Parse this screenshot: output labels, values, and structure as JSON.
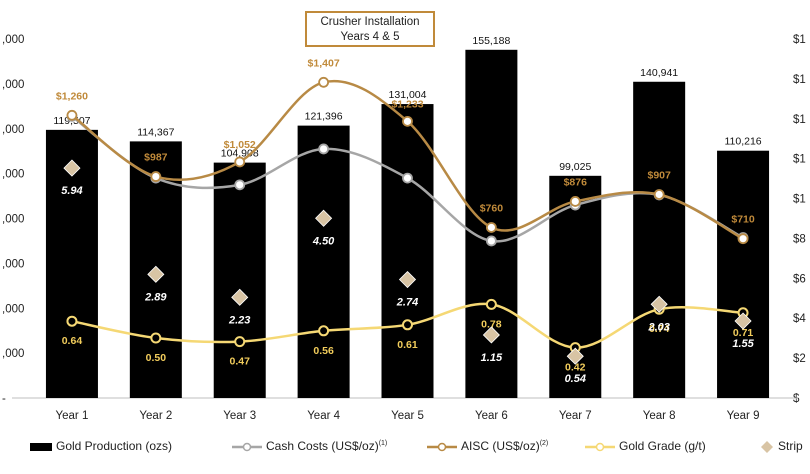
{
  "chart_data": {
    "type": "bar",
    "categories": [
      "Year 1",
      "Year 2",
      "Year 3",
      "Year 4",
      "Year 5",
      "Year 6",
      "Year 7",
      "Year 8",
      "Year 9"
    ],
    "series": [
      {
        "name": "Gold Production (ozs)",
        "type": "bar",
        "axis": "left",
        "color": "#000000",
        "values": [
          119507,
          114367,
          104908,
          121396,
          131004,
          155188,
          99025,
          140941,
          110216
        ],
        "labels": [
          "119,507",
          "114,367",
          "104,908",
          "121,396",
          "131,004",
          "155,188",
          "99,025",
          "140,941",
          "110,216"
        ]
      },
      {
        "name": "Cash Costs (US$/oz)",
        "name_sup": "(1)",
        "type": "line",
        "axis": "right",
        "color": "#A6A6A6",
        "values": [
          1255,
          980,
          950,
          1110,
          980,
          700,
          860,
          905,
          715
        ]
      },
      {
        "name": "AISC (US$/oz)",
        "name_sup": "(2)",
        "type": "line",
        "axis": "right",
        "color": "#B88A45",
        "values": [
          1260,
          987,
          1052,
          1407,
          1233,
          760,
          876,
          907,
          710
        ],
        "labels": [
          "$1,260",
          "$987",
          "$1,052",
          "$1,407",
          "$1,233",
          "$760",
          "$876",
          "$907",
          "$710"
        ]
      },
      {
        "name": "Gold Grade (g/t)",
        "type": "line",
        "axis": "right",
        "color": "#F5D874",
        "values": [
          0.64,
          0.5,
          0.47,
          0.56,
          0.61,
          0.78,
          0.42,
          0.74,
          0.71
        ],
        "labels": [
          "0.64",
          "0.50",
          "0.47",
          "0.56",
          "0.61",
          "0.78",
          "0.42",
          "0.74",
          "0.71"
        ]
      },
      {
        "name": "Strip",
        "type": "scatter",
        "axis": "right",
        "color": "#D8C4A4",
        "values": [
          5.94,
          2.89,
          2.23,
          4.5,
          2.74,
          1.15,
          0.54,
          2.03,
          1.55
        ],
        "labels": [
          "5.94",
          "2.89",
          "2.23",
          "4.50",
          "2.74",
          "1.15",
          "0.54",
          "2.03",
          "1.55"
        ]
      }
    ],
    "left_axis_ticks": [
      ",000",
      ",000",
      ",000",
      ",000",
      ",000",
      ",000",
      ",000",
      ",000",
      "-"
    ],
    "right_axis_ticks": [
      "$1",
      "$1",
      "$1",
      "$1",
      "$1",
      "$8",
      "$6",
      "$4",
      "$2",
      "$"
    ],
    "annotation": {
      "line1": "Crusher Installation",
      "line2": "Years 4 & 5"
    },
    "legend_position": "bottom",
    "grid": false
  }
}
